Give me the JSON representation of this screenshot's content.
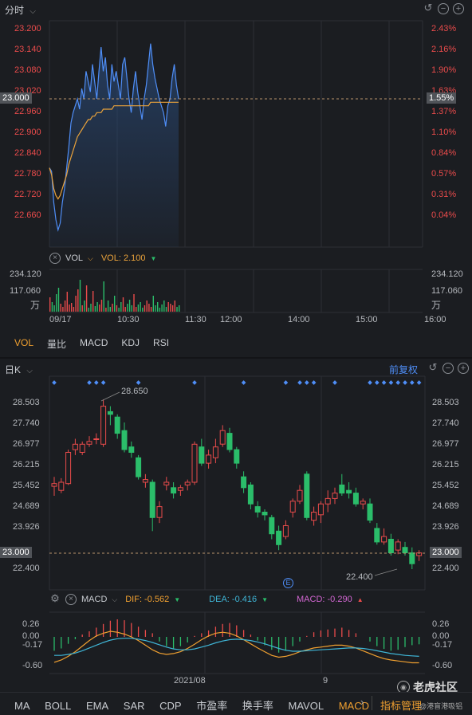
{
  "intraday": {
    "title": "分时",
    "left_ticks": [
      "23.200",
      "23.140",
      "23.080",
      "23.020",
      "23.000",
      "22.960",
      "22.900",
      "22.840",
      "22.780",
      "22.720",
      "22.660"
    ],
    "right_ticks": [
      "2.43%",
      "2.16%",
      "1.90%",
      "1.63%",
      "1.55%",
      "1.37%",
      "1.10%",
      "0.84%",
      "0.57%",
      "0.31%",
      "0.04%"
    ],
    "current_price": "23.000",
    "current_pct": "1.55%",
    "vol_label": "VOL",
    "vol_value": "VOL: 2.100",
    "vol_ticks": [
      "234.120",
      "117.060",
      "万"
    ],
    "time_labels": [
      "09/17",
      "10:30",
      "11:30",
      "12:00",
      "14:00",
      "15:00",
      "16:00"
    ],
    "indicator_tabs": [
      "VOL",
      "量比",
      "MACD",
      "KDJ",
      "RSI"
    ],
    "active_tab": "VOL"
  },
  "daily": {
    "title": "日K",
    "adj_label": "前复权",
    "price_ticks": [
      "28.503",
      "27.740",
      "26.977",
      "26.215",
      "25.452",
      "24.689",
      "23.926",
      "23.163",
      "22.400"
    ],
    "current_price": "23.000",
    "high_label": "28.650",
    "low_label": "22.400",
    "event_marker": "E",
    "macd": {
      "label": "MACD",
      "dif": "DIF: -0.562",
      "dea": "DEA: -0.416",
      "macd": "MACD: -0.290",
      "ticks": [
        "0.26",
        "0.00",
        "-0.17",
        "-0.60"
      ]
    },
    "date_labels": [
      "2021/08",
      "9"
    ],
    "bottom_tabs": [
      "MA",
      "BOLL",
      "EMA",
      "SAR",
      "CDP",
      "市盈率",
      "换手率",
      "MAVOL",
      "MACD"
    ],
    "active_bottom_tab": "MACD",
    "manage_label": "指标管理",
    "watermark": "老虎社区",
    "watermark_sub": "@港盲港吸铝"
  },
  "colors": {
    "up": "#e94b4b",
    "down": "#2bbd6a",
    "price_line": "#4f8ef7",
    "avg_line": "#e9a23b",
    "accent": "#f0a030"
  }
}
